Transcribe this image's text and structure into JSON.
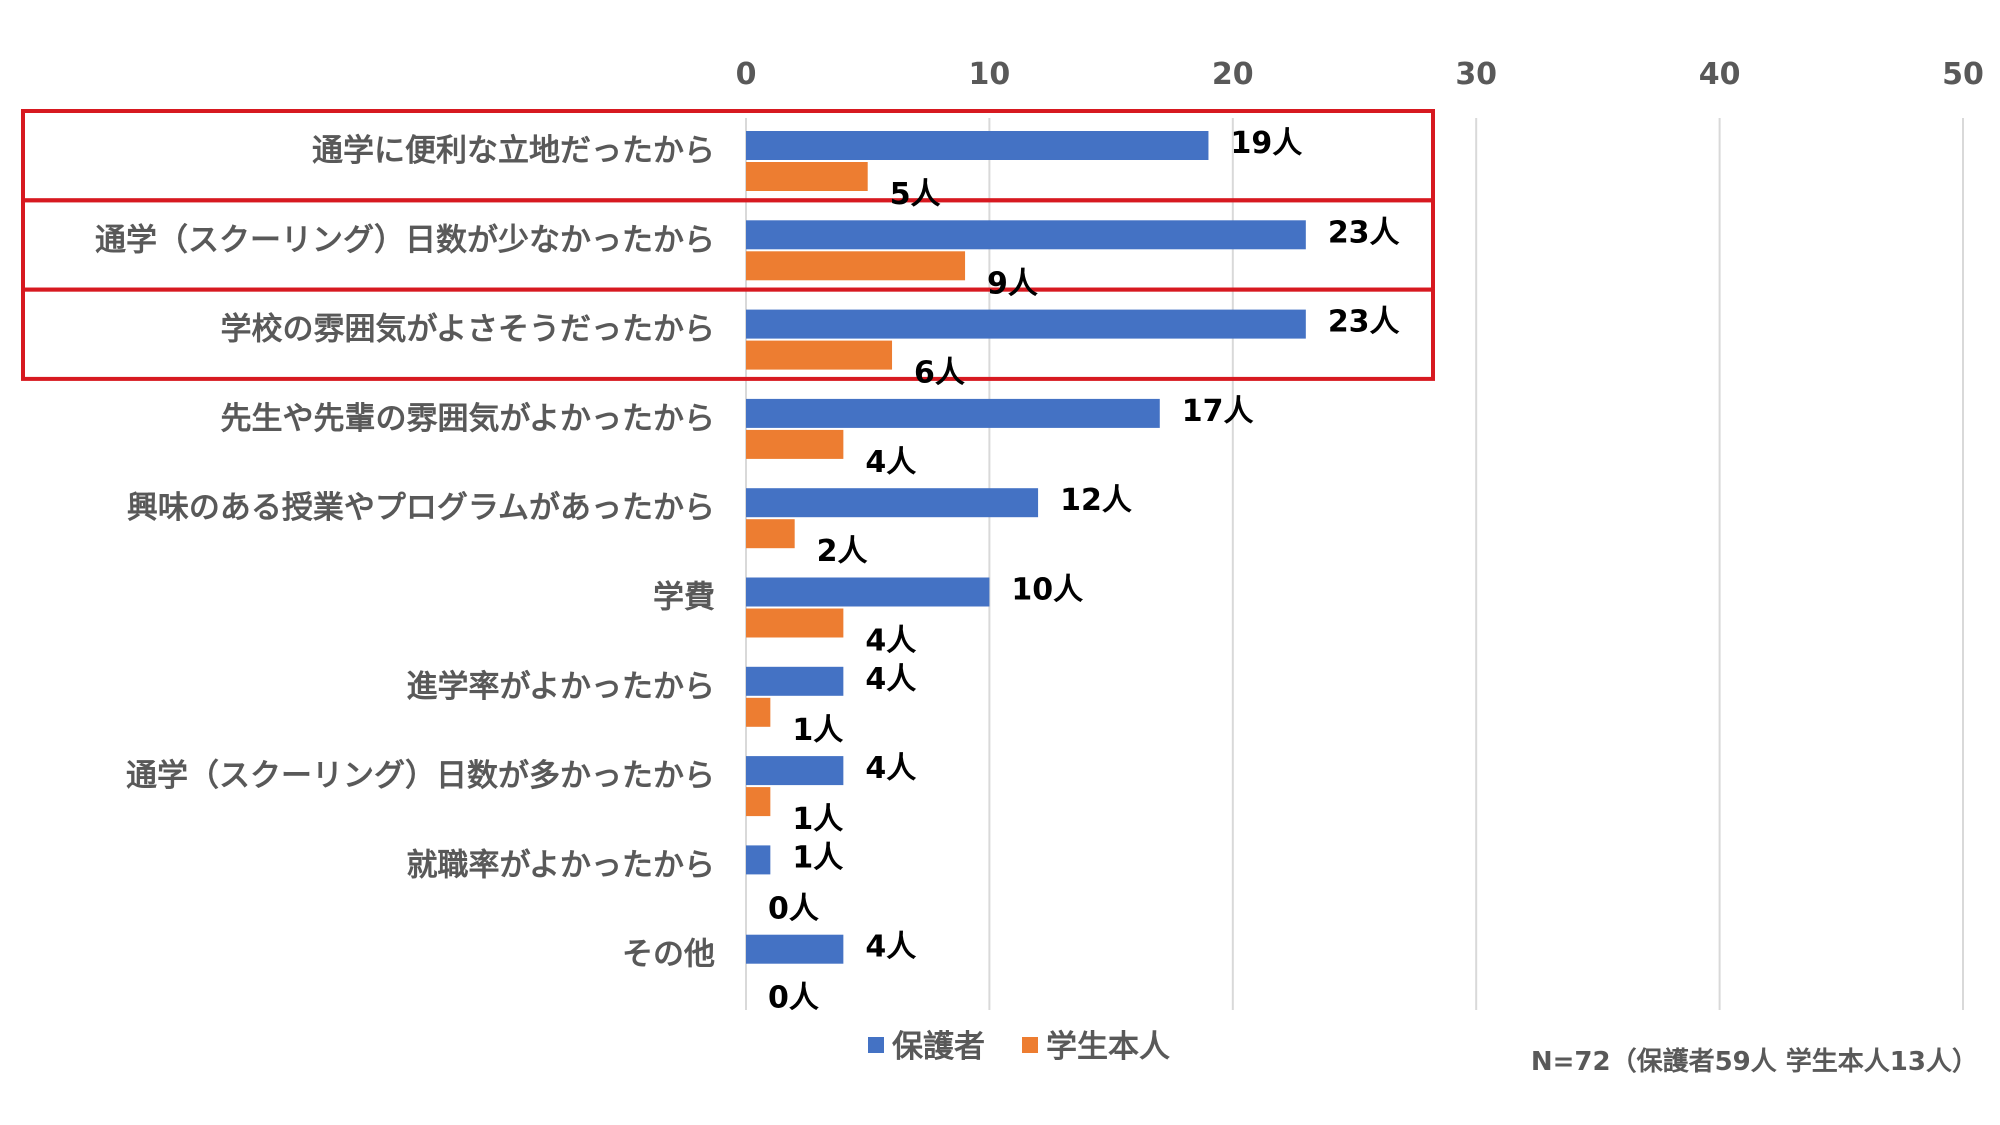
{
  "chart_data": {
    "type": "bar",
    "orientation": "horizontal",
    "categories": [
      "通学に便利な立地だったから",
      "通学（スクーリング）日数が少なかったから",
      "学校の雰囲気がよさそうだったから",
      "先生や先輩の雰囲気がよかったから",
      "興味のある授業やプログラムがあったから",
      "学費",
      "進学率がよかったから",
      "通学（スクーリング）日数が多かったから",
      "就職率がよかったから",
      "その他"
    ],
    "series": [
      {
        "name": "保護者",
        "color": "#4472c4",
        "values": [
          19,
          23,
          23,
          17,
          12,
          10,
          4,
          4,
          1,
          4
        ],
        "labels": [
          "19人",
          "23人",
          "23人",
          "17人",
          "12人",
          "10人",
          "4人",
          "4人",
          "1人",
          "4人"
        ]
      },
      {
        "name": "学生本人",
        "color": "#ed7d31",
        "values": [
          5,
          9,
          6,
          4,
          2,
          4,
          1,
          1,
          0,
          0
        ],
        "labels": [
          "5人",
          "9人",
          "6人",
          "4人",
          "2人",
          "4人",
          "1人",
          "1人",
          "0人",
          "0人"
        ]
      }
    ],
    "x_ticks": [
      "0",
      "10",
      "20",
      "30",
      "40",
      "50"
    ],
    "xlim": [
      0,
      50
    ],
    "grid": true,
    "legend_position": "bottom",
    "highlighted_categories": [
      0,
      1,
      2
    ],
    "highlight_color": "#d71920",
    "note": "N=72（保護者59人 学生本人13人）"
  }
}
